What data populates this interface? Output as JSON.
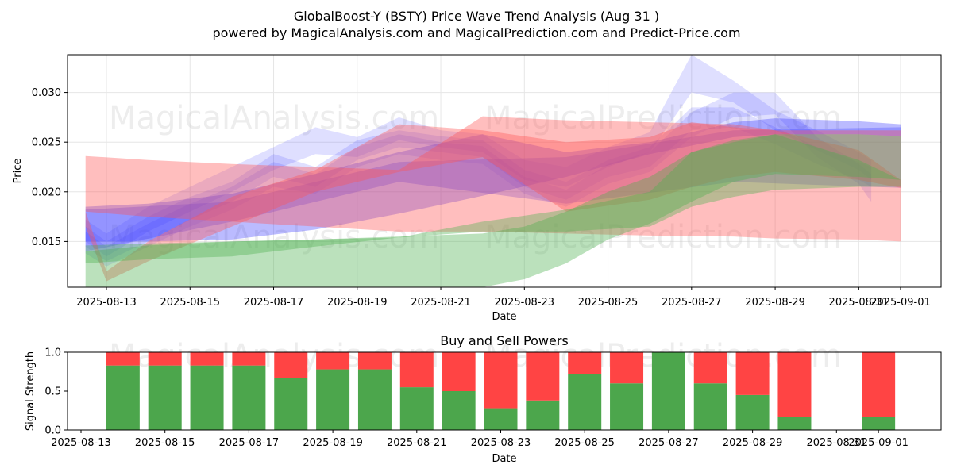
{
  "title_line1": "GlobalBoost-Y (BSTY) Price Wave Trend Analysis (Aug 31 )",
  "title_line2": "powered by MagicalAnalysis.com and MagicalPrediction.com and Predict-Price.com",
  "watermarks": [
    "MagicalAnalysis.com",
    "MagicalPrediction.com"
  ],
  "colors": {
    "blue": "#3b3bff",
    "red": "#ff5555",
    "green": "#4caf50",
    "sell": "#ff4444",
    "buy": "#4ca64c"
  },
  "chart_data": [
    {
      "type": "area",
      "title": "",
      "xlabel": "Date",
      "ylabel": "Price",
      "ylim": [
        0.0104,
        0.0338
      ],
      "yticks": [
        0.015,
        0.02,
        0.025,
        0.03
      ],
      "ytick_labels": [
        "0.015",
        "0.020",
        "0.025",
        "0.030"
      ],
      "xtick_days": [
        13,
        15,
        17,
        19,
        21,
        23,
        25,
        27,
        29,
        31,
        32
      ],
      "xtick_labels": [
        "2025-08-13",
        "2025-08-15",
        "2025-08-17",
        "2025-08-19",
        "2025-08-21",
        "2025-08-23",
        "2025-08-25",
        "2025-08-27",
        "2025-08-29",
        "2025-08-31",
        "2025-09-01"
      ],
      "grid": true,
      "series": [
        {
          "name": "blue-wave-1",
          "color": "blue",
          "x": [
            12.5,
            13,
            14,
            15,
            16,
            17,
            18,
            19,
            20,
            21,
            22,
            23,
            24,
            25,
            26,
            27,
            28,
            29,
            30,
            31,
            31.3
          ],
          "upper": [
            0.0165,
            0.015,
            0.0175,
            0.0195,
            0.021,
            0.0238,
            0.0225,
            0.0252,
            0.0262,
            0.0256,
            0.0252,
            0.0222,
            0.021,
            0.0232,
            0.0245,
            0.0285,
            0.0285,
            0.0265,
            0.0245,
            0.023,
            0.0225
          ],
          "lower": [
            0.0145,
            0.013,
            0.015,
            0.0172,
            0.019,
            0.0215,
            0.0205,
            0.0232,
            0.0245,
            0.024,
            0.0235,
            0.0205,
            0.0192,
            0.0215,
            0.0225,
            0.0262,
            0.0265,
            0.0248,
            0.0228,
            0.0212,
            0.0205
          ]
        },
        {
          "name": "blue-wave-2",
          "color": "blue",
          "x": [
            12.5,
            13,
            14,
            15,
            16,
            17,
            18,
            19,
            20,
            21,
            22,
            23,
            24,
            25,
            26,
            27,
            28,
            29,
            30,
            31,
            31.3
          ],
          "upper": [
            0.0172,
            0.0158,
            0.0185,
            0.0205,
            0.0225,
            0.0245,
            0.0265,
            0.0255,
            0.0275,
            0.0262,
            0.0258,
            0.0232,
            0.0225,
            0.0245,
            0.026,
            0.0338,
            0.0312,
            0.0282,
            0.0262,
            0.024,
            0.0232
          ],
          "lower": [
            0.015,
            0.0135,
            0.016,
            0.018,
            0.02,
            0.0222,
            0.0238,
            0.0235,
            0.0252,
            0.0245,
            0.024,
            0.0212,
            0.0205,
            0.0225,
            0.024,
            0.03,
            0.029,
            0.0262,
            0.0242,
            0.0222,
            0.0212
          ]
        },
        {
          "name": "blue-wave-3",
          "color": "blue",
          "x": [
            12.5,
            13,
            14,
            15,
            16,
            17,
            18,
            19,
            20,
            21,
            22,
            23,
            24,
            25,
            26,
            27,
            28,
            29,
            30,
            31,
            31.3
          ],
          "upper": [
            0.016,
            0.0145,
            0.0168,
            0.0188,
            0.0205,
            0.023,
            0.0218,
            0.0245,
            0.0258,
            0.025,
            0.0246,
            0.0215,
            0.0202,
            0.0228,
            0.024,
            0.028,
            0.03,
            0.03,
            0.0255,
            0.0228,
            0.0218
          ],
          "lower": [
            0.0138,
            0.0125,
            0.0145,
            0.0165,
            0.0182,
            0.0205,
            0.0198,
            0.0225,
            0.0238,
            0.0232,
            0.0228,
            0.0198,
            0.0185,
            0.0208,
            0.022,
            0.0255,
            0.0275,
            0.0278,
            0.0235,
            0.0208,
            0.019
          ]
        },
        {
          "name": "blue-trend",
          "color": "blue",
          "x": [
            12.5,
            14,
            16,
            18,
            20,
            22,
            24,
            26,
            28,
            29,
            31,
            32
          ],
          "upper": [
            0.0185,
            0.0188,
            0.0198,
            0.0218,
            0.024,
            0.0258,
            0.024,
            0.025,
            0.027,
            0.0274,
            0.0271,
            0.0268
          ],
          "lower": [
            0.015,
            0.015,
            0.0152,
            0.0162,
            0.0178,
            0.0196,
            0.0215,
            0.0238,
            0.0255,
            0.0258,
            0.0258,
            0.0256
          ]
        },
        {
          "name": "purple-band",
          "color": "blue",
          "x": [
            12.5,
            16,
            20,
            24,
            28,
            32
          ],
          "upper": [
            0.0182,
            0.019,
            0.023,
            0.0235,
            0.0262,
            0.0265
          ],
          "lower": [
            0.014,
            0.017,
            0.021,
            0.0188,
            0.021,
            0.0204
          ]
        },
        {
          "name": "red-band-1",
          "color": "red",
          "x": [
            12.5,
            14,
            16,
            18,
            20,
            22,
            24,
            26,
            28,
            29,
            31,
            32
          ],
          "upper": [
            0.0236,
            0.0232,
            0.0228,
            0.0225,
            0.0222,
            0.0276,
            0.0272,
            0.027,
            0.0268,
            0.0262,
            0.0262,
            0.0262
          ],
          "lower": [
            0.018,
            0.0175,
            0.017,
            0.0165,
            0.016,
            0.016,
            0.0158,
            0.0156,
            0.0155,
            0.0153,
            0.0152,
            0.015
          ]
        },
        {
          "name": "red-band-2",
          "color": "red",
          "x": [
            12.5,
            13,
            14,
            16,
            18,
            20,
            22,
            24,
            26,
            27,
            28,
            29,
            31,
            32
          ],
          "upper": [
            0.018,
            0.012,
            0.015,
            0.0195,
            0.0222,
            0.0268,
            0.0262,
            0.025,
            0.0255,
            0.027,
            0.0265,
            0.0262,
            0.0242,
            0.0212
          ],
          "lower": [
            0.0165,
            0.011,
            0.013,
            0.0165,
            0.02,
            0.022,
            0.0235,
            0.018,
            0.0192,
            0.0205,
            0.0215,
            0.022,
            0.0212,
            0.0204
          ]
        },
        {
          "name": "green-band-1",
          "color": "green",
          "x": [
            12.5,
            14,
            16,
            18,
            20,
            22,
            24,
            26,
            27,
            28,
            29,
            31,
            32
          ],
          "upper": [
            0.0146,
            0.0148,
            0.015,
            0.0152,
            0.0154,
            0.017,
            0.0182,
            0.02,
            0.024,
            0.0252,
            0.0258,
            0.0258,
            0.0256
          ],
          "lower": [
            0.0128,
            0.0132,
            0.0135,
            0.0145,
            0.0154,
            0.016,
            0.016,
            0.0165,
            0.0185,
            0.0195,
            0.0202,
            0.0205,
            0.0205
          ]
        },
        {
          "name": "green-band-2",
          "color": "green",
          "x": [
            12.5,
            14,
            16,
            18,
            20,
            22,
            23,
            24,
            25,
            26,
            27,
            28,
            29,
            31,
            32
          ],
          "upper": [
            0.014,
            0.0146,
            0.015,
            0.0152,
            0.0155,
            0.0158,
            0.0165,
            0.018,
            0.02,
            0.0215,
            0.024,
            0.025,
            0.0258,
            0.0232,
            0.0212
          ],
          "lower": [
            0.0104,
            0.0104,
            0.0104,
            0.0104,
            0.0104,
            0.0104,
            0.0112,
            0.0128,
            0.0152,
            0.0168,
            0.019,
            0.021,
            0.0218,
            0.0215,
            0.0212
          ]
        }
      ]
    },
    {
      "type": "bar",
      "title": "Buy and Sell Powers",
      "xlabel": "Date",
      "ylabel": "Signal Strength",
      "ylim": [
        0,
        1.0
      ],
      "yticks": [
        0.0,
        0.5,
        1.0
      ],
      "ytick_labels": [
        "0.0",
        "0.5",
        "1.0"
      ],
      "xtick_days": [
        13,
        15,
        17,
        19,
        21,
        23,
        25,
        27,
        29,
        31,
        32
      ],
      "xtick_labels": [
        "2025-08-13",
        "2025-08-15",
        "2025-08-17",
        "2025-08-19",
        "2025-08-21",
        "2025-08-23",
        "2025-08-25",
        "2025-08-27",
        "2025-08-29",
        "2025-08-31",
        "2025-09-01"
      ],
      "categories": [
        14,
        15,
        16,
        17,
        18,
        19,
        20,
        21,
        22,
        23,
        24,
        25,
        26,
        27,
        28,
        29,
        30,
        32
      ],
      "series": [
        {
          "name": "Buy",
          "color": "buy",
          "values": [
            0.83,
            0.83,
            0.83,
            0.83,
            0.67,
            0.78,
            0.78,
            0.55,
            0.5,
            0.28,
            0.38,
            0.72,
            0.6,
            1.0,
            0.6,
            0.45,
            0.17,
            0.17
          ]
        },
        {
          "name": "Sell",
          "color": "sell",
          "values": [
            0.17,
            0.17,
            0.17,
            0.17,
            0.33,
            0.22,
            0.22,
            0.45,
            0.5,
            0.72,
            0.62,
            0.28,
            0.4,
            0.0,
            0.4,
            0.55,
            0.83,
            0.83
          ]
        }
      ]
    }
  ]
}
